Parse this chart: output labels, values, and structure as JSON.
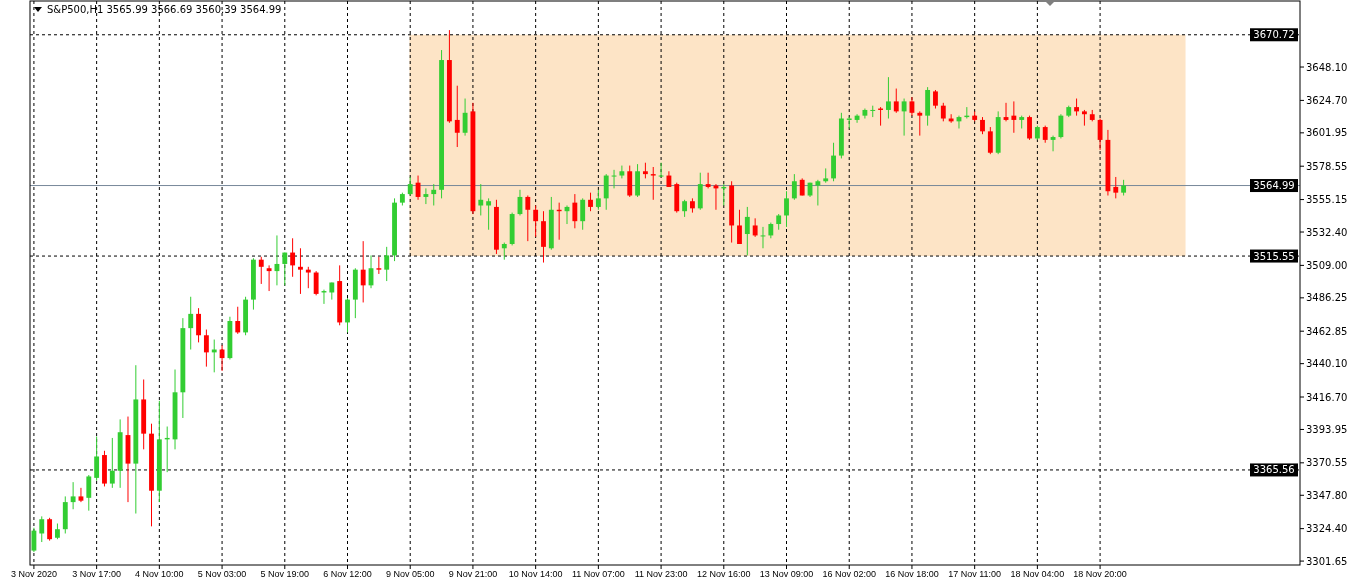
{
  "chart_data": {
    "type": "candlestick",
    "title": "S&P500,H1  3565.99 3566.69 3560.39 3564.99",
    "categories": [
      "3 Nov 2020",
      null,
      null,
      null,
      null,
      null,
      null,
      null,
      "3 Nov 17:00",
      null,
      null,
      null,
      null,
      null,
      null,
      null,
      "4 Nov 10:00",
      null,
      null,
      null,
      null,
      null,
      null,
      null,
      "5 Nov 03:00",
      null,
      null,
      null,
      null,
      null,
      null,
      null,
      "5 Nov 19:00",
      null,
      null,
      null,
      null,
      null,
      null,
      null,
      "6 Nov 12:00",
      null,
      null,
      null,
      null,
      null,
      null,
      null,
      "9 Nov 05:00",
      null,
      null,
      null,
      null,
      null,
      null,
      null,
      "9 Nov 21:00",
      null,
      null,
      null,
      null,
      null,
      null,
      null,
      "10 Nov 14:00",
      null,
      null,
      null,
      null,
      null,
      null,
      null,
      "11 Nov 07:00",
      null,
      null,
      null,
      null,
      null,
      null,
      null,
      "11 Nov 23:00",
      null,
      null,
      null,
      null,
      null,
      null,
      null,
      "12 Nov 16:00",
      null,
      null,
      null,
      null,
      null,
      null,
      null,
      "13 Nov 09:00",
      null,
      null,
      null,
      null,
      null,
      null,
      null,
      "16 Nov 02:00",
      null,
      null,
      null,
      null,
      null,
      null,
      null,
      "16 Nov 18:00",
      null,
      null,
      null,
      null,
      null,
      null,
      null,
      "17 Nov 11:00",
      null,
      null,
      null,
      null,
      null,
      null,
      null,
      "18 Nov 04:00",
      null,
      null,
      null,
      null,
      null,
      null,
      null,
      "18 Nov 20:00",
      null,
      null,
      null,
      null,
      null,
      null,
      null,
      null,
      null,
      null,
      null,
      null,
      null,
      null,
      null,
      null,
      null,
      null,
      null,
      null,
      null,
      null,
      null,
      null,
      null
    ],
    "ohlc": [
      [
        3309,
        3325,
        3308,
        3323
      ],
      [
        3321,
        3333,
        3315,
        3331
      ],
      [
        3331,
        3332,
        3316,
        3317
      ],
      [
        3318,
        3328,
        3317,
        3324
      ],
      [
        3324,
        3347,
        3321,
        3343
      ],
      [
        3343,
        3357,
        3338,
        3347
      ],
      [
        3347,
        3353,
        3343,
        3344
      ],
      [
        3346,
        3362,
        3337,
        3361
      ],
      [
        3360,
        3389,
        3358,
        3375
      ],
      [
        3376,
        3379,
        3354,
        3356
      ],
      [
        3356,
        3388,
        3353,
        3365
      ],
      [
        3365,
        3401,
        3353,
        3392
      ],
      [
        3390,
        3403,
        3343,
        3370
      ],
      [
        3370,
        3439,
        3335,
        3415
      ],
      [
        3415,
        3429,
        3380,
        3391
      ],
      [
        3391,
        3398,
        3326,
        3351
      ],
      [
        3351,
        3414,
        3343,
        3387
      ],
      [
        3387,
        3396,
        3364,
        3388
      ],
      [
        3387,
        3436,
        3380,
        3420
      ],
      [
        3420,
        3472,
        3402,
        3465
      ],
      [
        3465,
        3487,
        3450,
        3475
      ],
      [
        3475,
        3479,
        3455,
        3460
      ],
      [
        3460,
        3464,
        3438,
        3448
      ],
      [
        3448,
        3457,
        3434,
        3450
      ],
      [
        3450,
        3453,
        3435,
        3444
      ],
      [
        3444,
        3473,
        3443,
        3470
      ],
      [
        3470,
        3480,
        3461,
        3462
      ],
      [
        3462,
        3487,
        3460,
        3485
      ],
      [
        3485,
        3514,
        3478,
        3513
      ],
      [
        3513,
        3515,
        3496,
        3508
      ],
      [
        3507,
        3509,
        3491,
        3505
      ],
      [
        3505,
        3530,
        3495,
        3510
      ],
      [
        3510,
        3518,
        3495,
        3518
      ],
      [
        3518,
        3528,
        3501,
        3509
      ],
      [
        3508,
        3521,
        3489,
        3506
      ],
      [
        3506,
        3508,
        3493,
        3504
      ],
      [
        3504,
        3505,
        3488,
        3489
      ],
      [
        3490,
        3492,
        3482,
        3491
      ],
      [
        3490,
        3497,
        3485,
        3497
      ],
      [
        3498,
        3509,
        3467,
        3469
      ],
      [
        3469,
        3486,
        3462,
        3485
      ],
      [
        3485,
        3507,
        3472,
        3506
      ],
      [
        3506,
        3526,
        3483,
        3495
      ],
      [
        3495,
        3516,
        3493,
        3507
      ],
      [
        3507,
        3515,
        3503,
        3506
      ],
      [
        3506,
        3522,
        3498,
        3516
      ],
      [
        3516,
        3556,
        3512,
        3553
      ],
      [
        3553,
        3560,
        3551,
        3559
      ],
      [
        3559,
        3571,
        3558,
        3566
      ],
      [
        3567,
        3572,
        3555,
        3557
      ],
      [
        3557,
        3563,
        3552,
        3559
      ],
      [
        3559,
        3566,
        3551,
        3562
      ],
      [
        3562,
        3660,
        3556,
        3653
      ],
      [
        3653,
        3674,
        3609,
        3610
      ],
      [
        3611,
        3635,
        3592,
        3602
      ],
      [
        3602,
        3626,
        3600,
        3616
      ],
      [
        3617,
        3623,
        3545,
        3547
      ],
      [
        3551,
        3566,
        3544,
        3555
      ],
      [
        3551,
        3556,
        3534,
        3554
      ],
      [
        3550,
        3555,
        3517,
        3520
      ],
      [
        3521,
        3525,
        3513,
        3524
      ],
      [
        3524,
        3546,
        3523,
        3545
      ],
      [
        3545,
        3562,
        3544,
        3557
      ],
      [
        3557,
        3558,
        3526,
        3548
      ],
      [
        3548,
        3551,
        3529,
        3540
      ],
      [
        3540,
        3547,
        3511,
        3522
      ],
      [
        3521,
        3557,
        3520,
        3548
      ],
      [
        3548,
        3553,
        3527,
        3547
      ],
      [
        3547,
        3551,
        3538,
        3550
      ],
      [
        3553,
        3559,
        3535,
        3540
      ],
      [
        3540,
        3556,
        3534,
        3555
      ],
      [
        3555,
        3560,
        3547,
        3550
      ],
      [
        3550,
        3562,
        3548,
        3556
      ],
      [
        3556,
        3573,
        3548,
        3572
      ],
      [
        3572,
        3576,
        3563,
        3572
      ],
      [
        3572,
        3579,
        3570,
        3575
      ],
      [
        3575,
        3579,
        3557,
        3558
      ],
      [
        3558,
        3580,
        3557,
        3575
      ],
      [
        3575,
        3581,
        3570,
        3573
      ],
      [
        3573,
        3578,
        3555,
        3572
      ],
      [
        3572,
        3581,
        3571,
        3572
      ],
      [
        3572,
        3575,
        3564,
        3564
      ],
      [
        3566,
        3567,
        3546,
        3547
      ],
      [
        3547,
        3555,
        3543,
        3554
      ],
      [
        3554,
        3556,
        3546,
        3549
      ],
      [
        3549,
        3574,
        3548,
        3566
      ],
      [
        3566,
        3574,
        3563,
        3564
      ],
      [
        3565,
        3566,
        3548,
        3563
      ],
      [
        3563,
        3566,
        3551,
        3564
      ],
      [
        3565,
        3568,
        3525,
        3537
      ],
      [
        3537,
        3548,
        3524,
        3524
      ],
      [
        3531,
        3550,
        3516,
        3543
      ],
      [
        3537,
        3542,
        3529,
        3530
      ],
      [
        3530,
        3536,
        3521,
        3530
      ],
      [
        3530,
        3539,
        3528,
        3538
      ],
      [
        3538,
        3545,
        3534,
        3544
      ],
      [
        3544,
        3561,
        3536,
        3556
      ],
      [
        3556,
        3573,
        3555,
        3568
      ],
      [
        3569,
        3570,
        3558,
        3558
      ],
      [
        3558,
        3567,
        3557,
        3567
      ],
      [
        3565,
        3569,
        3551,
        3568
      ],
      [
        3568,
        3577,
        3567,
        3570
      ],
      [
        3570,
        3595,
        3568,
        3586
      ],
      [
        3586,
        3616,
        3584,
        3612
      ],
      [
        3611,
        3613,
        3605,
        3612
      ],
      [
        3611,
        3615,
        3609,
        3614
      ],
      [
        3614,
        3619,
        3612,
        3618
      ],
      [
        3618,
        3621,
        3613,
        3618
      ],
      [
        3619,
        3620,
        3607,
        3618
      ],
      [
        3618,
        3641,
        3612,
        3624
      ],
      [
        3624,
        3633,
        3616,
        3617
      ],
      [
        3617,
        3626,
        3600,
        3624
      ],
      [
        3624,
        3627,
        3614,
        3616
      ],
      [
        3616,
        3617,
        3600,
        3614
      ],
      [
        3614,
        3634,
        3607,
        3632
      ],
      [
        3631,
        3632,
        3619,
        3621
      ],
      [
        3621,
        3623,
        3610,
        3612
      ],
      [
        3612,
        3615,
        3609,
        3610
      ],
      [
        3610,
        3614,
        3605,
        3613
      ],
      [
        3613,
        3620,
        3612,
        3614
      ],
      [
        3614,
        3617,
        3610,
        3611
      ],
      [
        3611,
        3613,
        3601,
        3603
      ],
      [
        3603,
        3606,
        3587,
        3588
      ],
      [
        3588,
        3617,
        3587,
        3613
      ],
      [
        3613,
        3623,
        3610,
        3611
      ],
      [
        3614,
        3624,
        3602,
        3611
      ],
      [
        3611,
        3614,
        3605,
        3613
      ],
      [
        3613,
        3614,
        3597,
        3598
      ],
      [
        3598,
        3607,
        3597,
        3606
      ],
      [
        3606,
        3607,
        3595,
        3597
      ],
      [
        3597,
        3600,
        3589,
        3599
      ],
      [
        3599,
        3615,
        3598,
        3614
      ],
      [
        3614,
        3621,
        3613,
        3620
      ],
      [
        3620,
        3626,
        3614,
        3617
      ],
      [
        3617,
        3618,
        3607,
        3615
      ],
      [
        3615,
        3618,
        3610,
        3611
      ],
      [
        3611,
        3612,
        3590,
        3597
      ],
      [
        3597,
        3604,
        3558,
        3561
      ],
      [
        3564,
        3571,
        3556,
        3560
      ],
      [
        3560,
        3569,
        3558,
        3564.99
      ],
      null,
      null,
      null,
      null,
      null,
      null,
      null,
      null,
      null,
      null,
      null,
      null,
      null,
      null,
      null,
      null,
      null,
      null,
      null,
      null,
      null,
      null
    ],
    "ylim": [
      3298.9,
      3694.4
    ],
    "yticks": [
      {
        "value": 3301.65,
        "label": "3301.65"
      },
      {
        "value": 3324.4,
        "label": "3324.40"
      },
      {
        "value": 3347.8,
        "label": "3347.80"
      },
      {
        "value": 3370.55,
        "label": "3370.55"
      },
      {
        "value": 3393.95,
        "label": "3393.95"
      },
      {
        "value": 3416.7,
        "label": "3416.70"
      },
      {
        "value": 3440.1,
        "label": "3440.10"
      },
      {
        "value": 3462.85,
        "label": "3462.85"
      },
      {
        "value": 3486.25,
        "label": "3486.25"
      },
      {
        "value": 3509,
        "label": "3509.00"
      },
      {
        "value": 3532.4,
        "label": "3532.40"
      },
      {
        "value": 3555.15,
        "label": "3555.15"
      },
      {
        "value": 3578.55,
        "label": "3578.55"
      },
      {
        "value": 3601.95,
        "label": "3601.95"
      },
      {
        "value": 3624.7,
        "label": "3624.70"
      },
      {
        "value": 3648.1,
        "label": "3648.10"
      }
    ],
    "grid": "x",
    "ref_lines": [
      {
        "axis": "y",
        "value": 3670.72,
        "label": "3670.72",
        "line_style": "dashed",
        "color": "#000000"
      },
      {
        "axis": "y",
        "value": 3564.99,
        "label": "3564.99",
        "line_style": "solid",
        "color": "#778899"
      },
      {
        "axis": "y",
        "value": 3515.55,
        "label": "3515.55",
        "line_style": "dashed",
        "color": "#000000"
      },
      {
        "axis": "y",
        "value": 3365.56,
        "label": "3365.56",
        "line_style": "dashed",
        "color": "#000000"
      }
    ],
    "bands": [
      {
        "axis": "y",
        "from": 3515.55,
        "to": 3670.72,
        "color": "#fde4c6"
      }
    ]
  }
}
